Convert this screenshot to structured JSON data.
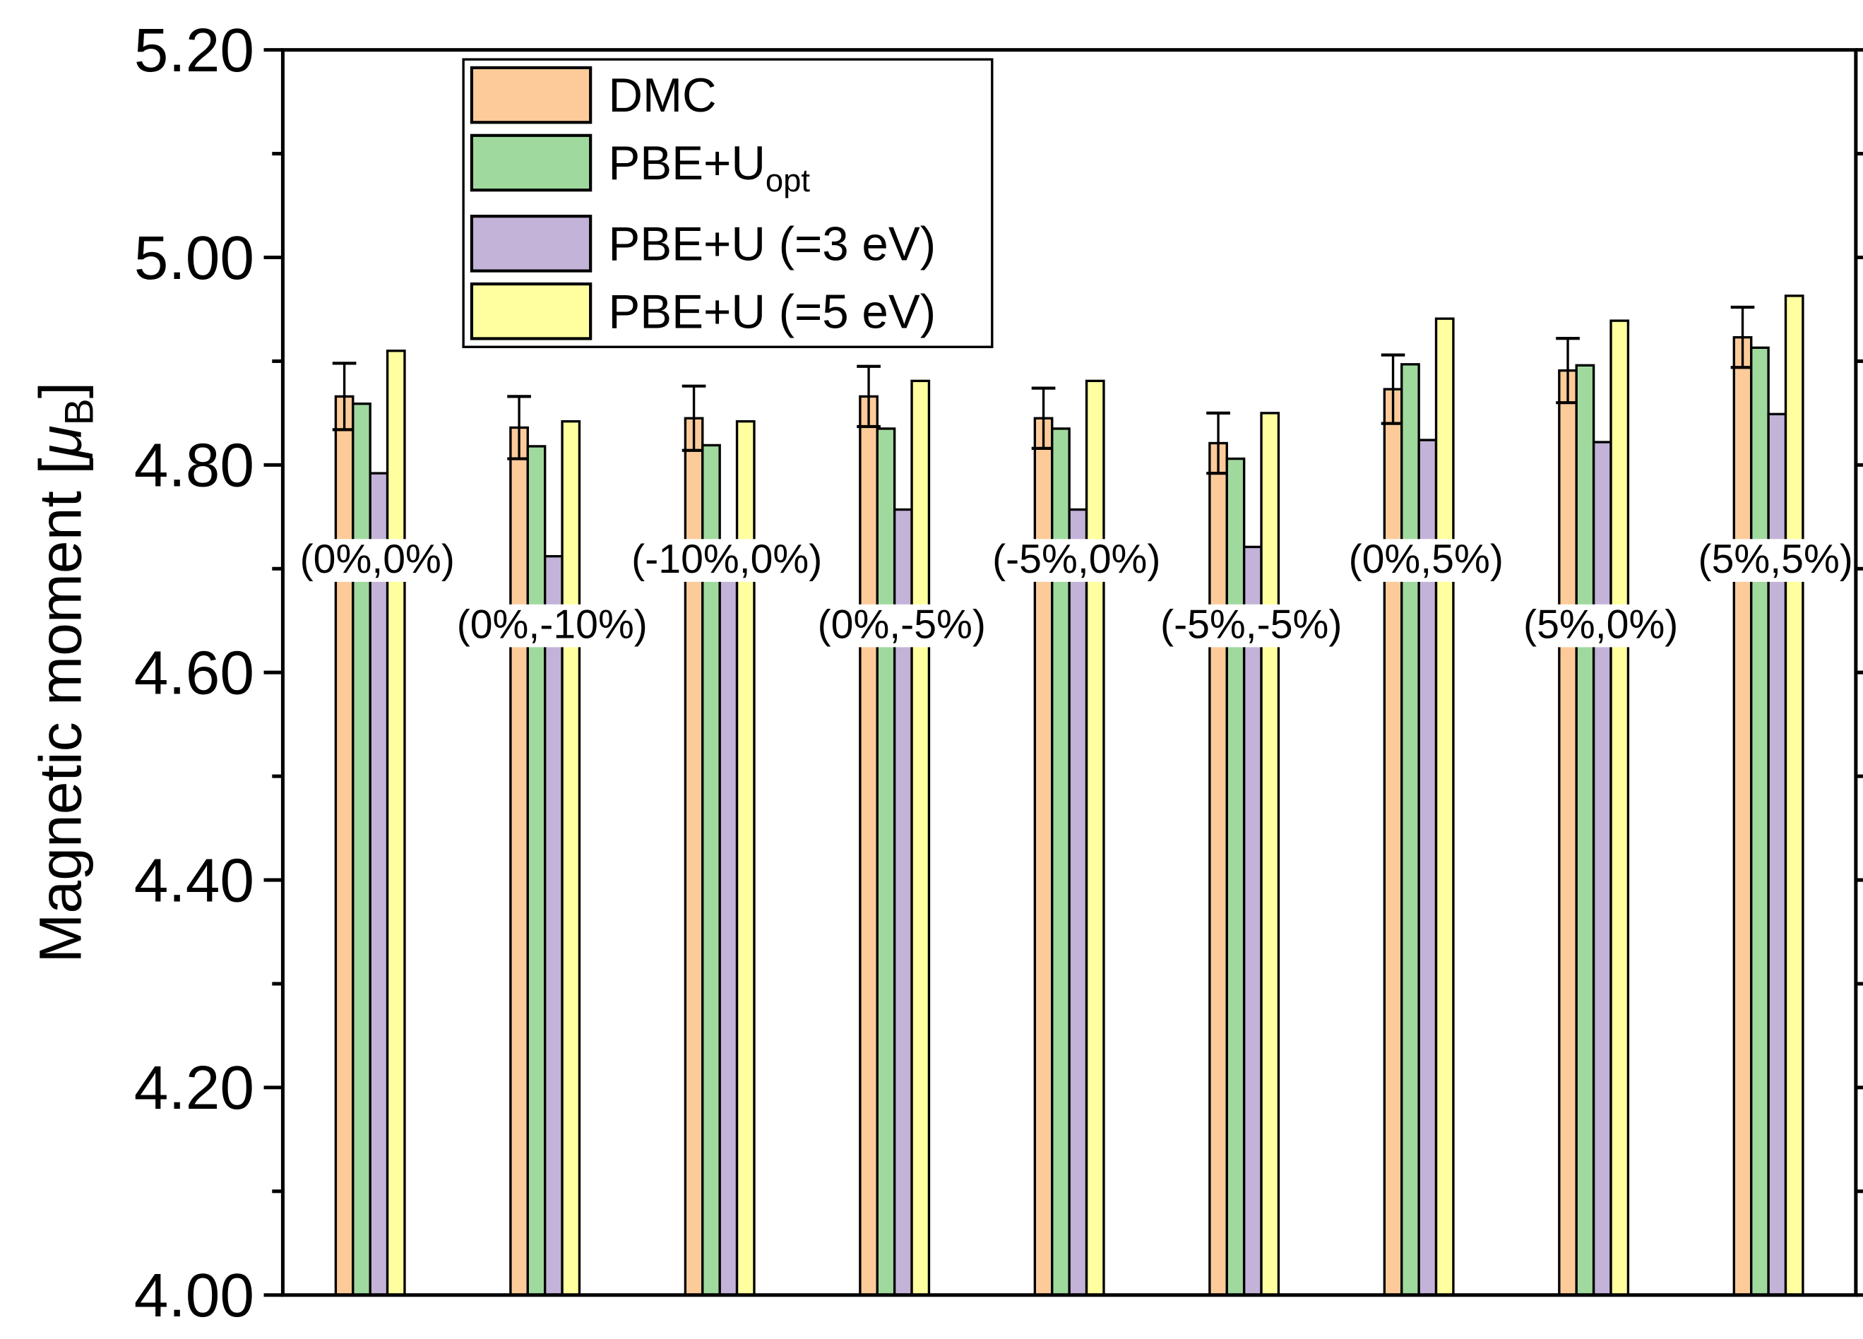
{
  "chart_data": {
    "type": "bar",
    "title": "",
    "xlabel": "",
    "ylabel": "Magnetic moment [",
    "ylabel_symbol": "μ",
    "ylabel_sub": "B",
    "ylabel_close": "]",
    "ylim": [
      4.0,
      5.2
    ],
    "yticks": [
      "4.00",
      "4.20",
      "4.40",
      "4.60",
      "4.80",
      "5.00",
      "5.20"
    ],
    "grid": false,
    "legend_placement": "top-left",
    "categories": [
      "(0%,0%)",
      "(0%,-10%)",
      "(-10%,0%)",
      "(0%,-5%)",
      "(-5%,0%)",
      "(-5%,-5%)",
      "(0%,5%)",
      "(5%,0%)",
      "(5%,5%)"
    ],
    "series": [
      {
        "name": "DMC",
        "legend_main": "DMC",
        "legend_sub": "",
        "color": "#FDCB9A",
        "values": [
          4.866,
          4.836,
          4.845,
          4.866,
          4.845,
          4.821,
          4.873,
          4.891,
          4.923
        ],
        "errors": [
          0.032,
          0.03,
          0.031,
          0.029,
          0.029,
          0.029,
          0.033,
          0.031,
          0.029
        ]
      },
      {
        "name": "PBE+Uopt",
        "legend_main": "PBE+U",
        "legend_sub": "opt",
        "color": "#A0D99E",
        "values": [
          4.859,
          4.818,
          4.819,
          4.835,
          4.835,
          4.806,
          4.897,
          4.896,
          4.913
        ]
      },
      {
        "name": "PBE+U (=3 eV)",
        "legend_main": "PBE+U (=3 eV)",
        "legend_sub": "",
        "color": "#C3B3D8",
        "values": [
          4.792,
          4.712,
          4.69,
          4.757,
          4.757,
          4.721,
          4.824,
          4.822,
          4.849
        ]
      },
      {
        "name": "PBE+U (=5 eV)",
        "legend_main": "PBE+U (=5 eV)",
        "legend_sub": "",
        "color": "#FFFFA0",
        "values": [
          4.91,
          4.842,
          4.842,
          4.881,
          4.881,
          4.85,
          4.941,
          4.939,
          4.963
        ]
      }
    ]
  }
}
